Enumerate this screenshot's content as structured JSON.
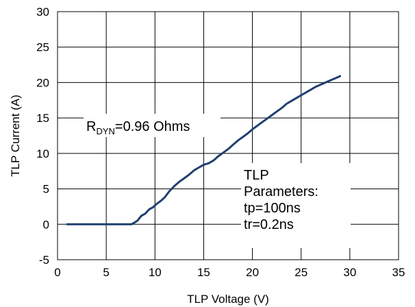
{
  "chart_data": {
    "type": "line",
    "title": "",
    "xlabel": "TLP Voltage (V)",
    "ylabel": "TLP Current (A)",
    "xlim": [
      0,
      35
    ],
    "ylim": [
      -5,
      30
    ],
    "xticks": [
      0,
      5,
      10,
      15,
      20,
      25,
      30,
      35
    ],
    "yticks": [
      -5,
      0,
      5,
      10,
      15,
      20,
      25,
      30
    ],
    "grid": true,
    "legend": "none",
    "series": [
      {
        "color": "#1f3f6e",
        "x": [
          1.0,
          3.0,
          5.0,
          7.0,
          7.6,
          8.2,
          8.6,
          9.0,
          9.4,
          9.8,
          10.2,
          10.6,
          11.0,
          11.5,
          12.0,
          12.5,
          13.0,
          13.5,
          14.0,
          14.5,
          15.0,
          15.5,
          16.0,
          16.5,
          17.0,
          17.5,
          18.0,
          18.5,
          19.0,
          19.5,
          20.0,
          20.5,
          21.0,
          21.5,
          22.0,
          22.5,
          23.0,
          23.5,
          24.0,
          24.5,
          25.0,
          25.5,
          26.0,
          26.5,
          27.0,
          27.5,
          28.0,
          28.5,
          29.0
        ],
        "y": [
          0,
          0,
          0,
          0,
          0,
          0.5,
          1.2,
          1.5,
          2.1,
          2.4,
          2.9,
          3.3,
          3.8,
          4.7,
          5.4,
          6.0,
          6.5,
          7.0,
          7.6,
          8.0,
          8.4,
          8.6,
          9.0,
          9.6,
          10.1,
          10.6,
          11.2,
          11.8,
          12.3,
          12.8,
          13.4,
          13.9,
          14.4,
          14.9,
          15.4,
          15.9,
          16.4,
          17.0,
          17.4,
          17.8,
          18.2,
          18.6,
          19.0,
          19.4,
          19.7,
          20.0,
          20.3,
          20.6,
          20.9
        ]
      }
    ],
    "annotations": {
      "rdyn_prefix": "R",
      "rdyn_sub": "DYN",
      "rdyn_value": "=0.96  Ohms",
      "params": [
        "TLP",
        "Parameters:",
        "tp=100ns",
        "tr=0.2ns"
      ]
    }
  }
}
